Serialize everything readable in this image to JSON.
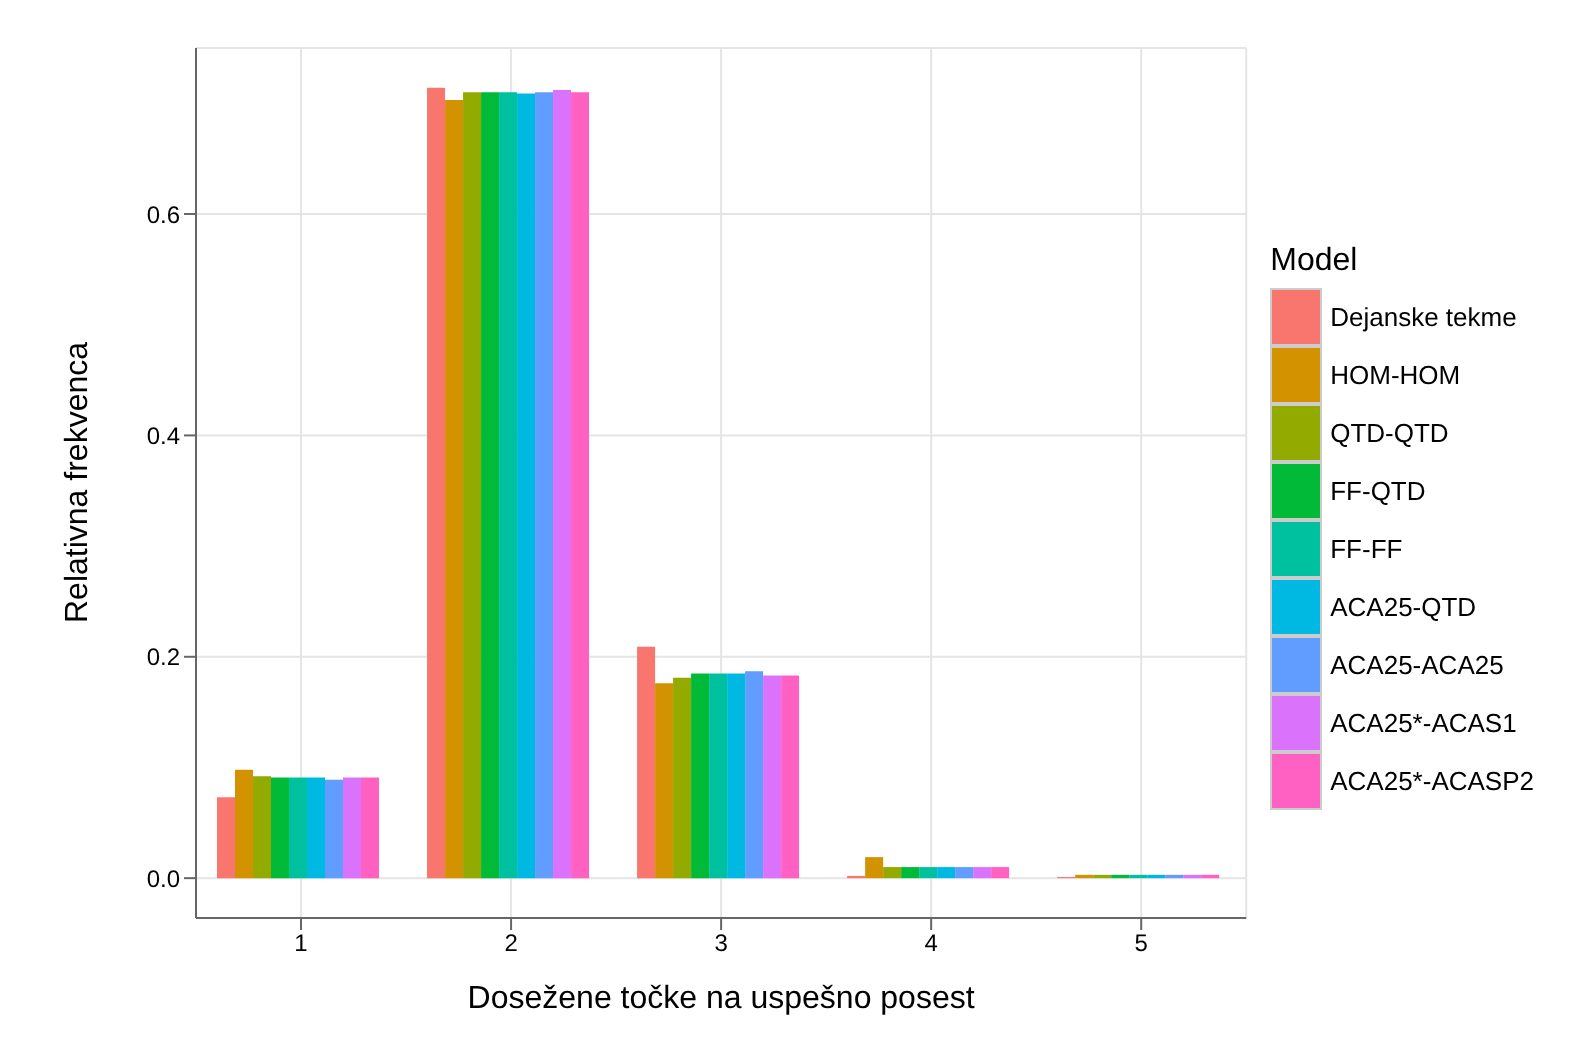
{
  "chart_data": {
    "type": "bar",
    "xlabel": "Dosežene točke na uspešno posest",
    "ylabel": "Relativna frekvenca",
    "legend_title": "Model",
    "categories": [
      "1",
      "2",
      "3",
      "4",
      "5"
    ],
    "series": [
      {
        "name": "Dejanske tekme",
        "color": "#f8766d",
        "values": [
          0.073,
          0.714,
          0.209,
          0.002,
          0.001
        ]
      },
      {
        "name": "HOM-HOM",
        "color": "#d39200",
        "values": [
          0.098,
          0.703,
          0.176,
          0.019,
          0.003
        ]
      },
      {
        "name": "QTD-QTD",
        "color": "#93aa00",
        "values": [
          0.092,
          0.71,
          0.181,
          0.01,
          0.003
        ]
      },
      {
        "name": "FF-QTD",
        "color": "#00ba38",
        "values": [
          0.091,
          0.71,
          0.185,
          0.01,
          0.003
        ]
      },
      {
        "name": "FF-FF",
        "color": "#00c19f",
        "values": [
          0.091,
          0.71,
          0.185,
          0.01,
          0.003
        ]
      },
      {
        "name": "ACA25-QTD",
        "color": "#00b9e3",
        "values": [
          0.091,
          0.709,
          0.185,
          0.01,
          0.003
        ]
      },
      {
        "name": "ACA25-ACA25",
        "color": "#619cff",
        "values": [
          0.089,
          0.71,
          0.187,
          0.01,
          0.003
        ]
      },
      {
        "name": "ACA25*-ACAS1",
        "color": "#db72fb",
        "values": [
          0.091,
          0.712,
          0.183,
          0.01,
          0.003
        ]
      },
      {
        "name": "ACA25*-ACASP2",
        "color": "#ff61c3",
        "values": [
          0.091,
          0.71,
          0.183,
          0.01,
          0.003
        ]
      }
    ],
    "ylim": [
      -0.036,
      0.75
    ],
    "yticks": [
      {
        "value": 0,
        "label": "0.0"
      },
      {
        "value": 0.2,
        "label": "0.2"
      },
      {
        "value": 0.4,
        "label": "0.4"
      },
      {
        "value": 0.6,
        "label": "0.6"
      }
    ],
    "grid": true,
    "legend": "right"
  }
}
